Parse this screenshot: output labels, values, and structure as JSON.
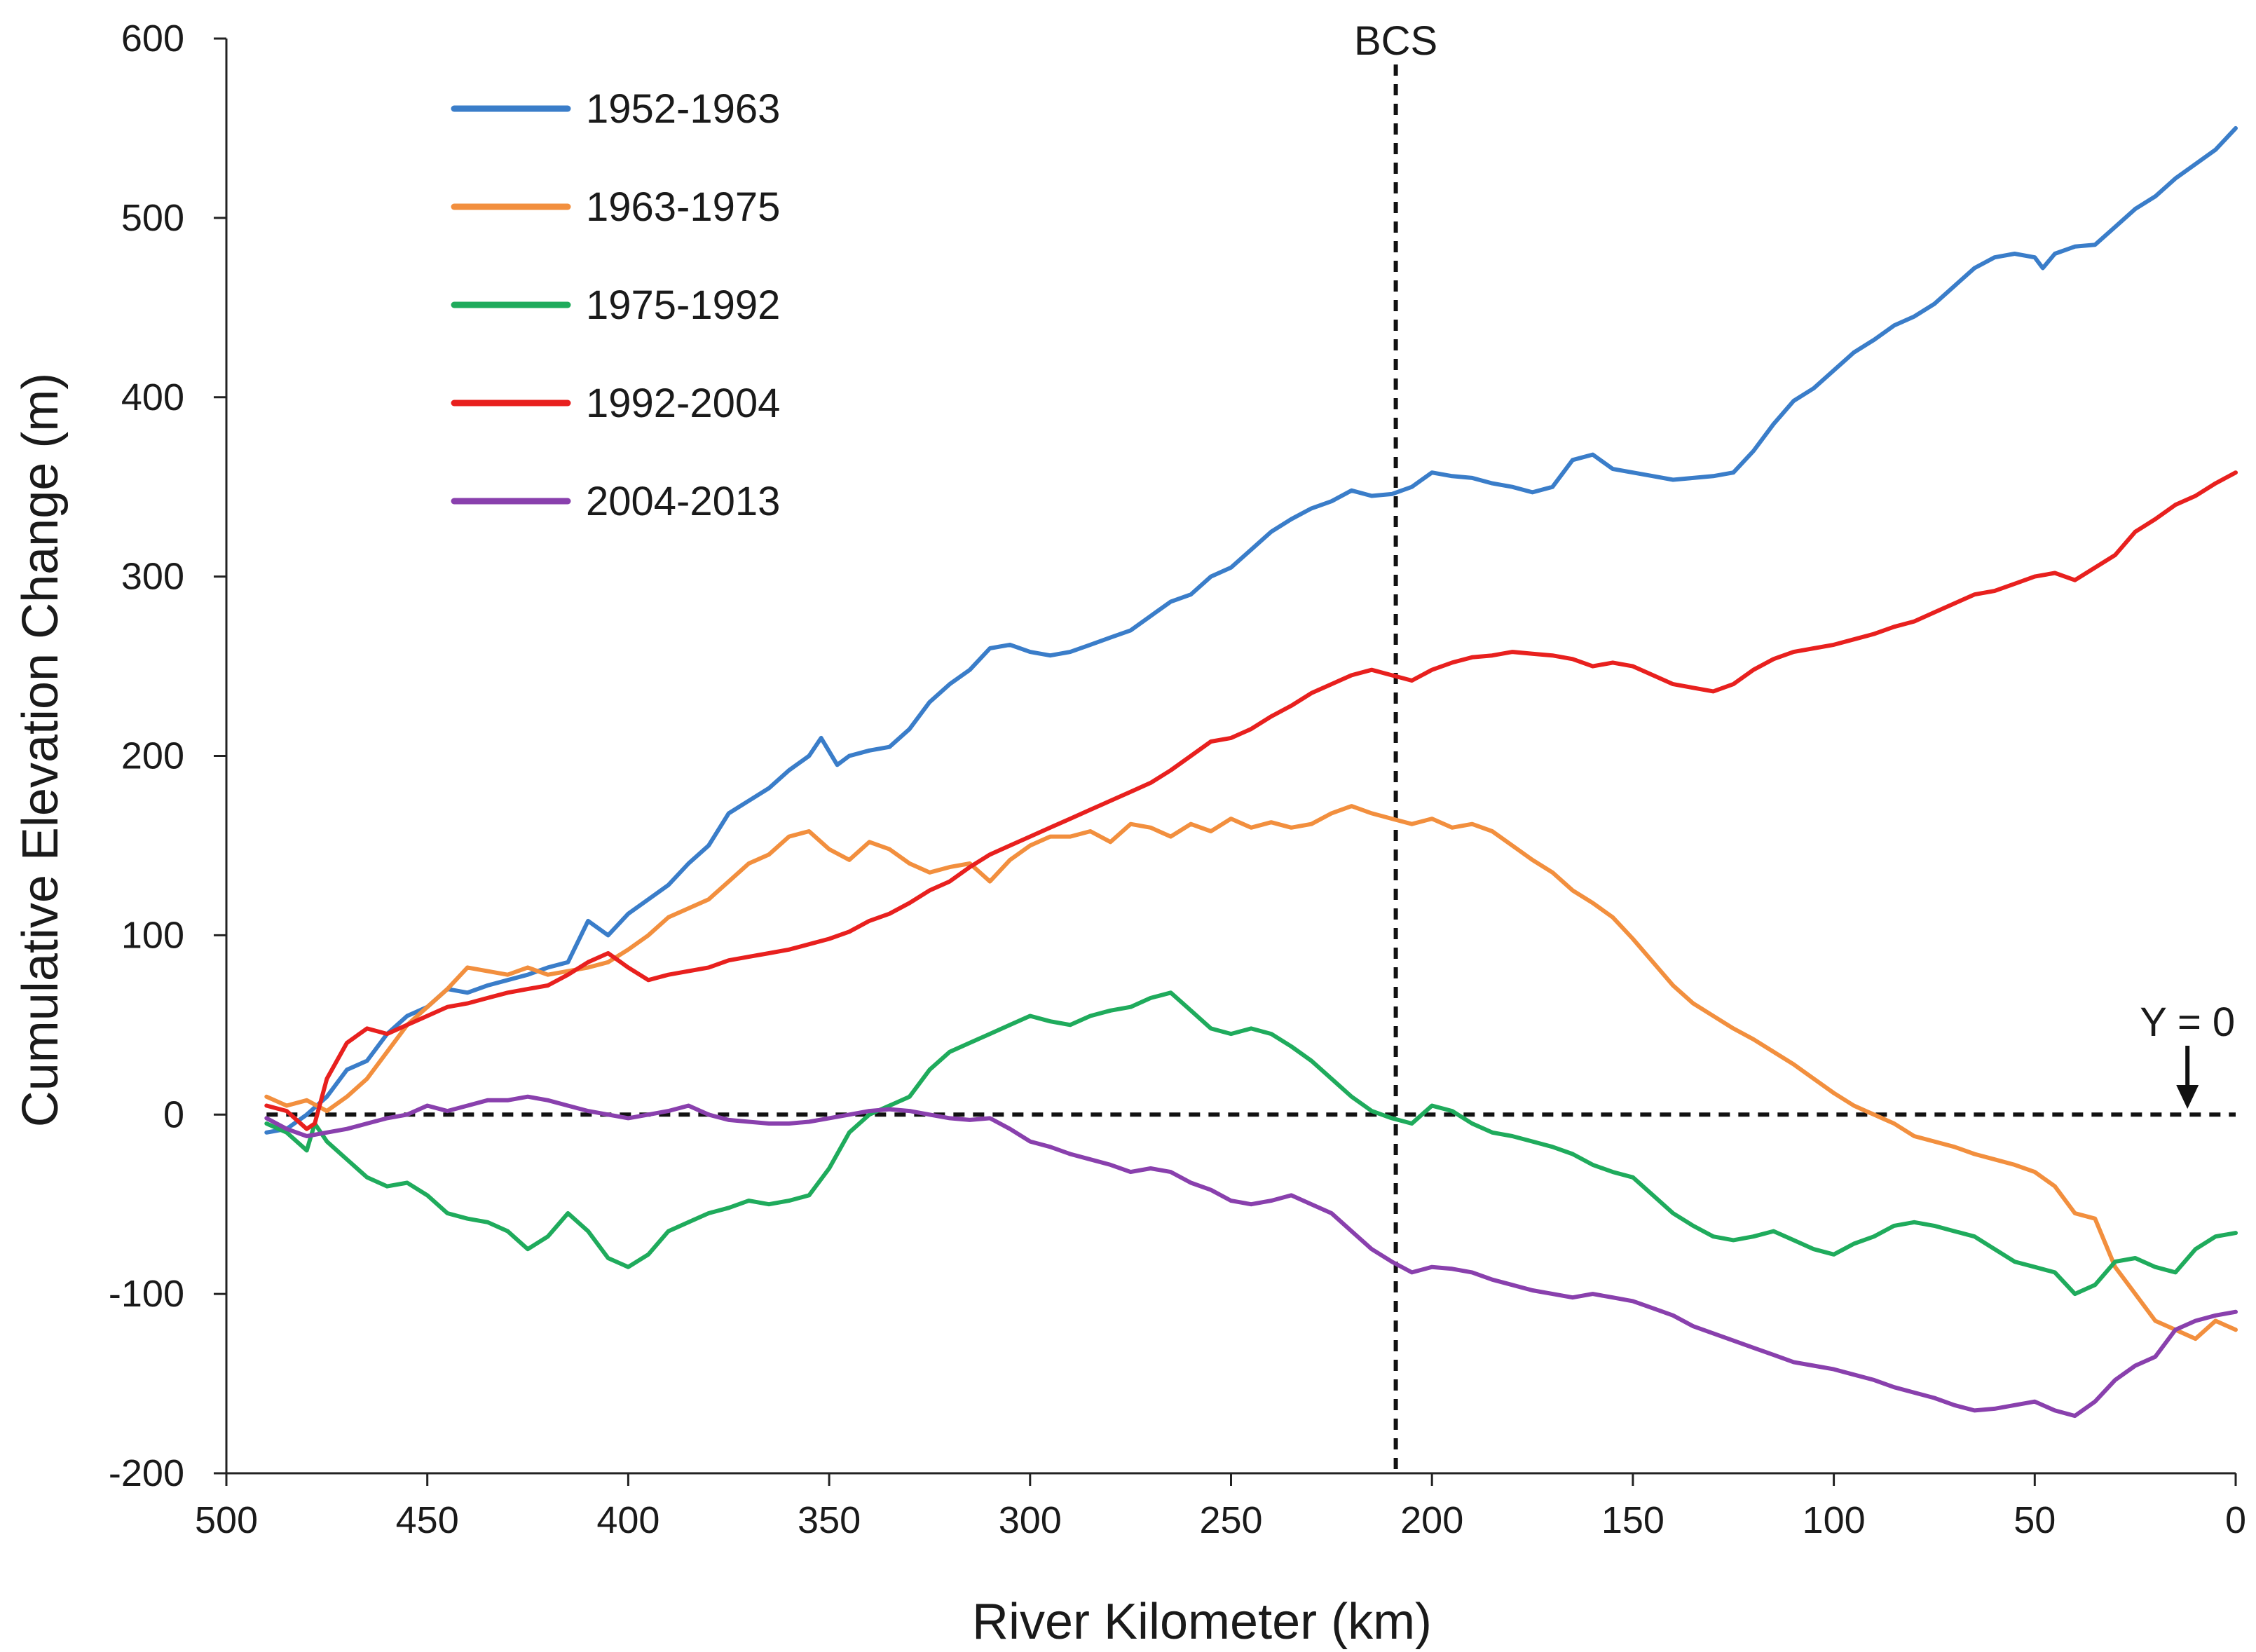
{
  "chart_data": {
    "type": "line",
    "title": "",
    "xlabel": "River Kilometer (km)",
    "ylabel": "Cumulative Elevation Change (m)",
    "xlim": [
      500,
      0
    ],
    "ylim": [
      -200,
      600
    ],
    "x_ticks": [
      500,
      450,
      400,
      350,
      300,
      250,
      200,
      150,
      100,
      50,
      0
    ],
    "y_ticks": [
      -200,
      -100,
      0,
      100,
      200,
      300,
      400,
      500,
      600
    ],
    "x_tick_labels": [
      "500",
      "450",
      "400",
      "350",
      "300",
      "250",
      "200",
      "150",
      "100",
      "50",
      "0"
    ],
    "y_tick_labels": [
      "-200",
      "-100",
      "0",
      "100",
      "200",
      "300",
      "400",
      "500",
      "600"
    ],
    "grid": false,
    "legend_position": "top-left",
    "annotations": {
      "bcs": {
        "label": "BCS",
        "x": 209
      },
      "zero_line": {
        "label": "Y = 0",
        "y": 0,
        "arrow_x": 12
      }
    },
    "series": [
      {
        "name": "1952-1963",
        "color": "#3a7dc9",
        "x": [
          490,
          485,
          480,
          475,
          470,
          465,
          460,
          455,
          450,
          445,
          440,
          435,
          430,
          425,
          420,
          415,
          410,
          405,
          400,
          395,
          390,
          385,
          380,
          375,
          370,
          365,
          360,
          355,
          352,
          348,
          345,
          340,
          335,
          330,
          325,
          320,
          315,
          310,
          305,
          300,
          295,
          290,
          285,
          280,
          275,
          270,
          265,
          260,
          255,
          250,
          245,
          240,
          235,
          230,
          225,
          220,
          215,
          210,
          205,
          200,
          195,
          190,
          185,
          180,
          175,
          170,
          165,
          160,
          155,
          150,
          145,
          140,
          135,
          130,
          125,
          120,
          115,
          110,
          105,
          100,
          95,
          90,
          85,
          80,
          75,
          70,
          65,
          60,
          55,
          50,
          48,
          45,
          40,
          35,
          30,
          25,
          20,
          15,
          10,
          5,
          0
        ],
        "values": [
          -10,
          -8,
          0,
          10,
          25,
          30,
          45,
          55,
          60,
          70,
          68,
          72,
          75,
          78,
          82,
          85,
          108,
          100,
          112,
          120,
          128,
          140,
          150,
          168,
          175,
          182,
          192,
          200,
          210,
          195,
          200,
          203,
          205,
          215,
          230,
          240,
          248,
          260,
          262,
          258,
          256,
          258,
          262,
          266,
          270,
          278,
          286,
          290,
          300,
          305,
          315,
          325,
          332,
          338,
          342,
          348,
          345,
          346,
          350,
          358,
          356,
          355,
          352,
          350,
          347,
          350,
          365,
          368,
          360,
          358,
          356,
          354,
          355,
          356,
          358,
          370,
          385,
          398,
          405,
          415,
          425,
          432,
          440,
          445,
          452,
          462,
          472,
          478,
          480,
          478,
          472,
          480,
          484,
          485,
          495,
          505,
          512,
          522,
          530,
          538,
          550
        ]
      },
      {
        "name": "1963-1975",
        "color": "#f28f3e",
        "x": [
          490,
          485,
          480,
          475,
          470,
          465,
          460,
          455,
          450,
          445,
          440,
          435,
          430,
          425,
          420,
          415,
          410,
          405,
          400,
          395,
          390,
          385,
          380,
          375,
          370,
          365,
          360,
          355,
          350,
          345,
          340,
          335,
          330,
          325,
          320,
          315,
          310,
          305,
          300,
          295,
          290,
          285,
          280,
          275,
          270,
          265,
          260,
          255,
          250,
          245,
          240,
          235,
          230,
          225,
          220,
          215,
          210,
          205,
          200,
          195,
          190,
          185,
          180,
          175,
          170,
          165,
          160,
          155,
          150,
          145,
          140,
          135,
          130,
          125,
          120,
          115,
          110,
          105,
          100,
          95,
          90,
          85,
          80,
          75,
          70,
          65,
          60,
          55,
          50,
          45,
          40,
          35,
          30,
          25,
          20,
          15,
          10,
          5,
          0
        ],
        "values": [
          10,
          5,
          8,
          2,
          10,
          20,
          35,
          50,
          60,
          70,
          82,
          80,
          78,
          82,
          78,
          80,
          82,
          85,
          92,
          100,
          110,
          115,
          120,
          130,
          140,
          145,
          155,
          158,
          148,
          142,
          152,
          148,
          140,
          135,
          138,
          140,
          130,
          142,
          150,
          155,
          155,
          158,
          152,
          162,
          160,
          155,
          162,
          158,
          165,
          160,
          163,
          160,
          162,
          168,
          172,
          168,
          165,
          162,
          165,
          160,
          162,
          158,
          150,
          142,
          135,
          125,
          118,
          110,
          98,
          85,
          72,
          62,
          55,
          48,
          42,
          35,
          28,
          20,
          12,
          5,
          0,
          -5,
          -12,
          -15,
          -18,
          -22,
          -25,
          -28,
          -32,
          -40,
          -55,
          -58,
          -85,
          -100,
          -115,
          -120,
          -125,
          -115,
          -120
        ]
      },
      {
        "name": "1975-1992",
        "color": "#1fab5c",
        "x": [
          490,
          485,
          480,
          478,
          475,
          470,
          465,
          460,
          455,
          450,
          445,
          440,
          435,
          430,
          425,
          420,
          415,
          410,
          405,
          400,
          395,
          390,
          385,
          380,
          375,
          370,
          365,
          360,
          355,
          350,
          345,
          340,
          335,
          330,
          325,
          320,
          315,
          310,
          305,
          300,
          295,
          290,
          285,
          280,
          275,
          270,
          265,
          260,
          255,
          250,
          245,
          240,
          235,
          230,
          225,
          220,
          215,
          210,
          205,
          200,
          195,
          190,
          185,
          180,
          175,
          170,
          165,
          160,
          155,
          150,
          145,
          140,
          135,
          130,
          125,
          120,
          115,
          110,
          105,
          100,
          95,
          90,
          85,
          80,
          75,
          70,
          65,
          60,
          55,
          50,
          45,
          40,
          35,
          30,
          25,
          20,
          15,
          10,
          5,
          0
        ],
        "values": [
          -5,
          -10,
          -20,
          -5,
          -15,
          -25,
          -35,
          -40,
          -38,
          -45,
          -55,
          -58,
          -60,
          -65,
          -75,
          -68,
          -55,
          -65,
          -80,
          -85,
          -78,
          -65,
          -60,
          -55,
          -52,
          -48,
          -50,
          -48,
          -45,
          -30,
          -10,
          0,
          5,
          10,
          25,
          35,
          40,
          45,
          50,
          55,
          52,
          50,
          55,
          58,
          60,
          65,
          68,
          58,
          48,
          45,
          48,
          45,
          38,
          30,
          20,
          10,
          2,
          -2,
          -5,
          5,
          2,
          -5,
          -10,
          -12,
          -15,
          -18,
          -22,
          -28,
          -32,
          -35,
          -45,
          -55,
          -62,
          -68,
          -70,
          -68,
          -65,
          -70,
          -75,
          -78,
          -72,
          -68,
          -62,
          -60,
          -62,
          -65,
          -68,
          -75,
          -82,
          -85,
          -88,
          -100,
          -95,
          -82,
          -80,
          -85,
          -88,
          -75,
          -68,
          -66
        ]
      },
      {
        "name": "1992-2004",
        "color": "#e8201e",
        "x": [
          490,
          485,
          480,
          478,
          475,
          470,
          465,
          460,
          455,
          450,
          445,
          440,
          435,
          430,
          425,
          420,
          415,
          410,
          405,
          400,
          395,
          390,
          385,
          380,
          375,
          370,
          365,
          360,
          355,
          350,
          345,
          340,
          335,
          330,
          325,
          320,
          315,
          310,
          305,
          300,
          295,
          290,
          285,
          280,
          275,
          270,
          265,
          260,
          255,
          250,
          245,
          240,
          235,
          230,
          225,
          220,
          215,
          210,
          205,
          200,
          195,
          190,
          185,
          180,
          175,
          170,
          165,
          160,
          155,
          150,
          145,
          140,
          135,
          130,
          125,
          120,
          115,
          110,
          105,
          100,
          95,
          90,
          85,
          80,
          75,
          70,
          65,
          60,
          55,
          50,
          45,
          40,
          35,
          30,
          25,
          20,
          15,
          10,
          5,
          0
        ],
        "values": [
          5,
          2,
          -8,
          -5,
          20,
          40,
          48,
          45,
          50,
          55,
          60,
          62,
          65,
          68,
          70,
          72,
          78,
          85,
          90,
          82,
          75,
          78,
          80,
          82,
          86,
          88,
          90,
          92,
          95,
          98,
          102,
          108,
          112,
          118,
          125,
          130,
          138,
          145,
          150,
          155,
          160,
          165,
          170,
          175,
          180,
          185,
          192,
          200,
          208,
          210,
          215,
          222,
          228,
          235,
          240,
          245,
          248,
          245,
          242,
          248,
          252,
          255,
          256,
          258,
          257,
          256,
          254,
          250,
          252,
          250,
          245,
          240,
          238,
          236,
          240,
          248,
          254,
          258,
          260,
          262,
          265,
          268,
          272,
          275,
          280,
          285,
          290,
          292,
          296,
          300,
          302,
          298,
          305,
          312,
          325,
          332,
          340,
          345,
          352,
          358
        ]
      },
      {
        "name": "2004-2013",
        "color": "#8940ad",
        "x": [
          490,
          485,
          480,
          475,
          470,
          465,
          460,
          455,
          450,
          445,
          440,
          435,
          430,
          425,
          420,
          415,
          410,
          405,
          400,
          395,
          390,
          385,
          380,
          375,
          370,
          365,
          360,
          355,
          350,
          345,
          340,
          335,
          330,
          325,
          320,
          315,
          310,
          305,
          300,
          295,
          290,
          285,
          280,
          275,
          270,
          265,
          260,
          255,
          250,
          245,
          240,
          235,
          230,
          225,
          220,
          215,
          210,
          205,
          200,
          195,
          190,
          185,
          180,
          175,
          170,
          165,
          160,
          155,
          150,
          145,
          140,
          135,
          130,
          125,
          120,
          115,
          110,
          105,
          100,
          95,
          90,
          85,
          80,
          75,
          70,
          65,
          60,
          55,
          50,
          45,
          40,
          35,
          30,
          25,
          20,
          15,
          10,
          5,
          0
        ],
        "values": [
          -2,
          -8,
          -12,
          -10,
          -8,
          -5,
          -2,
          0,
          5,
          2,
          5,
          8,
          8,
          10,
          8,
          5,
          2,
          0,
          -2,
          0,
          2,
          5,
          0,
          -3,
          -4,
          -5,
          -5,
          -4,
          -2,
          0,
          2,
          3,
          2,
          0,
          -2,
          -3,
          -2,
          -8,
          -15,
          -18,
          -22,
          -25,
          -28,
          -32,
          -30,
          -32,
          -38,
          -42,
          -48,
          -50,
          -48,
          -45,
          -50,
          -55,
          -65,
          -75,
          -82,
          -88,
          -85,
          -86,
          -88,
          -92,
          -95,
          -98,
          -100,
          -102,
          -100,
          -102,
          -104,
          -108,
          -112,
          -118,
          -122,
          -126,
          -130,
          -134,
          -138,
          -140,
          -142,
          -145,
          -148,
          -152,
          -155,
          -158,
          -162,
          -165,
          -164,
          -162,
          -160,
          -165,
          -168,
          -160,
          -148,
          -140,
          -135,
          -120,
          -115,
          -112,
          -110
        ]
      }
    ]
  }
}
